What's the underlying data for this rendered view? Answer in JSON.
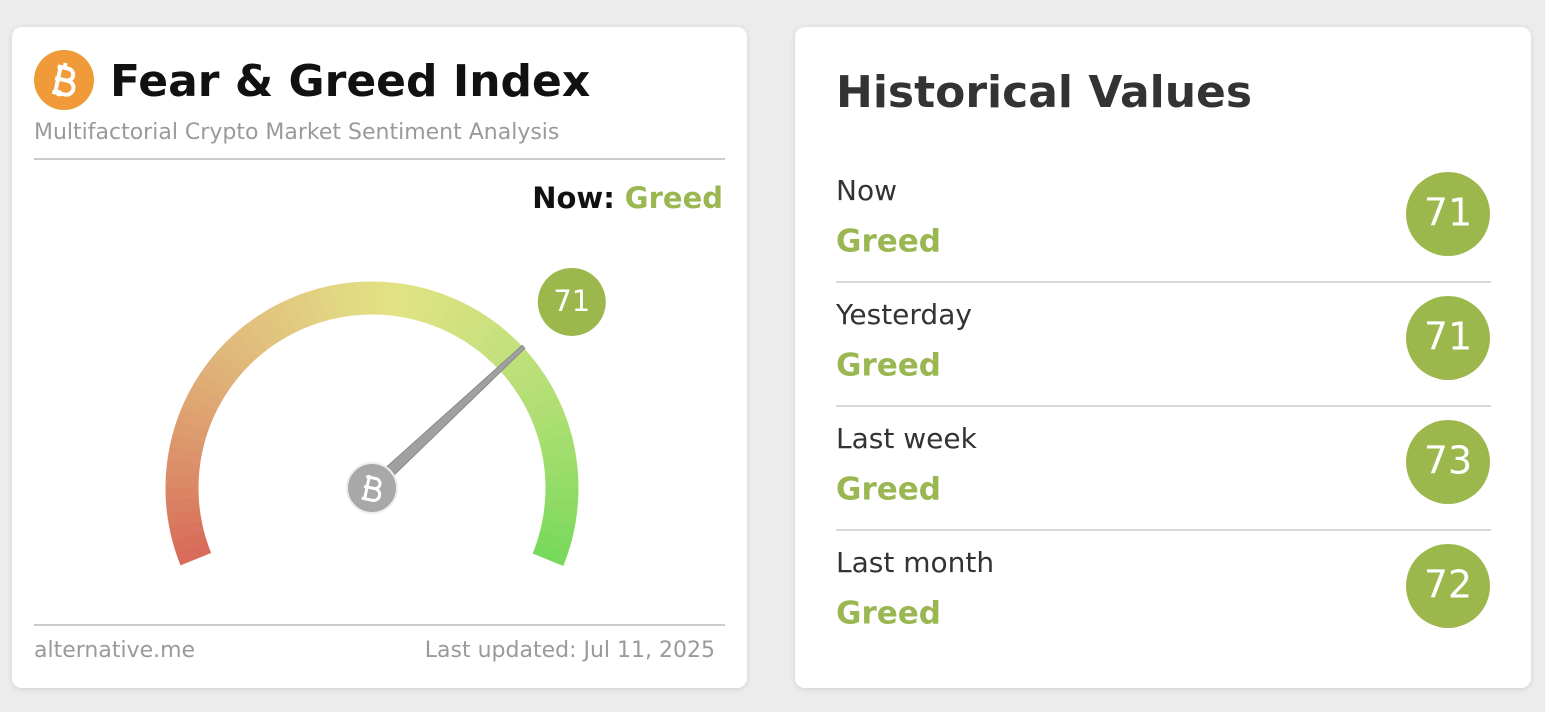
{
  "header": {
    "title": "Fear & Greed Index",
    "subtitle": "Multifactorial Crypto Market Sentiment Analysis"
  },
  "now": {
    "label": "Now:",
    "classification": "Greed"
  },
  "gauge": {
    "value": 71,
    "range": [
      0,
      100
    ]
  },
  "footer": {
    "source": "alternative.me",
    "updated": "Last updated: Jul 11, 2025"
  },
  "history": {
    "title": "Historical Values",
    "rows": [
      {
        "label": "Now",
        "classification": "Greed",
        "value": 71
      },
      {
        "label": "Yesterday",
        "classification": "Greed",
        "value": 71
      },
      {
        "label": "Last week",
        "classification": "Greed",
        "value": 73
      },
      {
        "label": "Last month",
        "classification": "Greed",
        "value": 72
      }
    ]
  }
}
